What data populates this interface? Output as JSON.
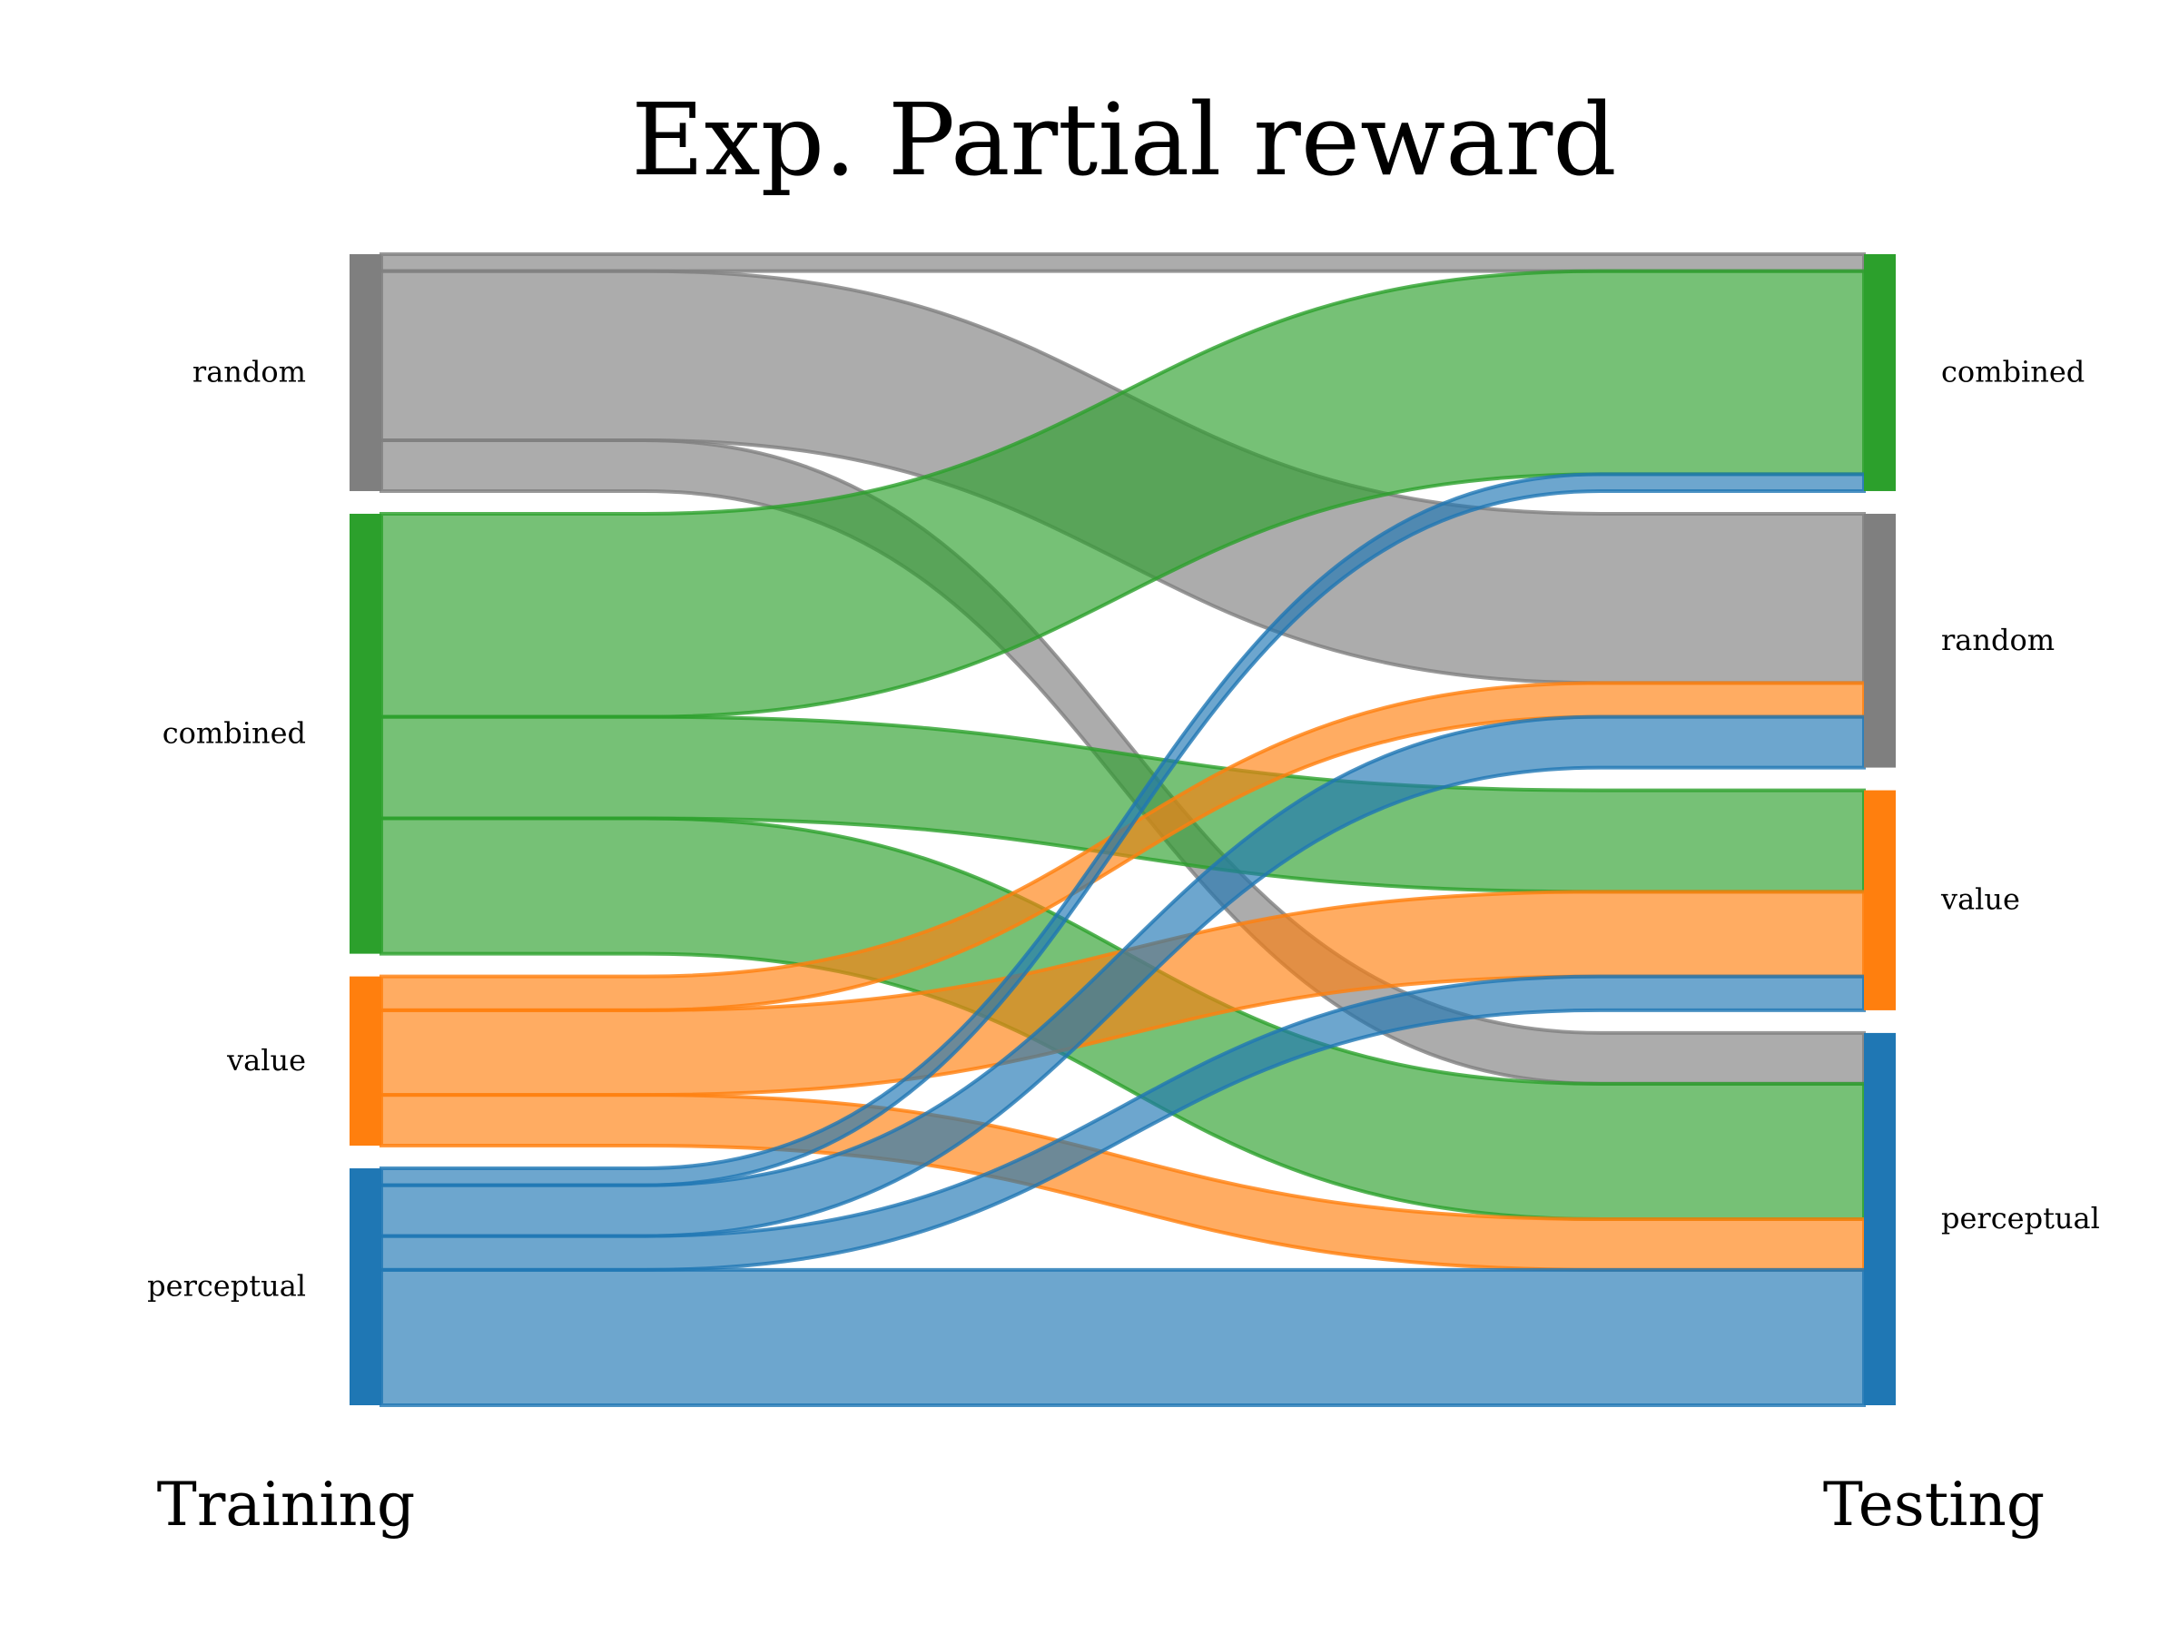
{
  "chart_data": {
    "type": "sankey",
    "title": "Exp. Partial reward",
    "left_axis_label": "Training",
    "right_axis_label": "Testing",
    "left_nodes": [
      {
        "id": "random",
        "label": "random",
        "color": "#7f7f7f"
      },
      {
        "id": "combined",
        "label": "combined",
        "color": "#2ca02c"
      },
      {
        "id": "value",
        "label": "value",
        "color": "#ff7f0e"
      },
      {
        "id": "perceptual",
        "label": "perceptual",
        "color": "#1f77b4"
      }
    ],
    "right_nodes": [
      {
        "id": "combined",
        "label": "combined",
        "color": "#2ca02c"
      },
      {
        "id": "random",
        "label": "random",
        "color": "#7f7f7f"
      },
      {
        "id": "value",
        "label": "value",
        "color": "#ff7f0e"
      },
      {
        "id": "perceptual",
        "label": "perceptual",
        "color": "#1f77b4"
      }
    ],
    "flows": [
      {
        "from": "random",
        "to": "combined",
        "value": 2
      },
      {
        "from": "random",
        "to": "random",
        "value": 20
      },
      {
        "from": "random",
        "to": "perceptual",
        "value": 6
      },
      {
        "from": "combined",
        "to": "combined",
        "value": 24
      },
      {
        "from": "combined",
        "to": "value",
        "value": 12
      },
      {
        "from": "combined",
        "to": "perceptual",
        "value": 16
      },
      {
        "from": "value",
        "to": "random",
        "value": 4
      },
      {
        "from": "value",
        "to": "value",
        "value": 10
      },
      {
        "from": "value",
        "to": "perceptual",
        "value": 6
      },
      {
        "from": "perceptual",
        "to": "combined",
        "value": 2
      },
      {
        "from": "perceptual",
        "to": "random",
        "value": 6
      },
      {
        "from": "perceptual",
        "to": "value",
        "value": 4
      },
      {
        "from": "perceptual",
        "to": "perceptual",
        "value": 16
      }
    ]
  }
}
